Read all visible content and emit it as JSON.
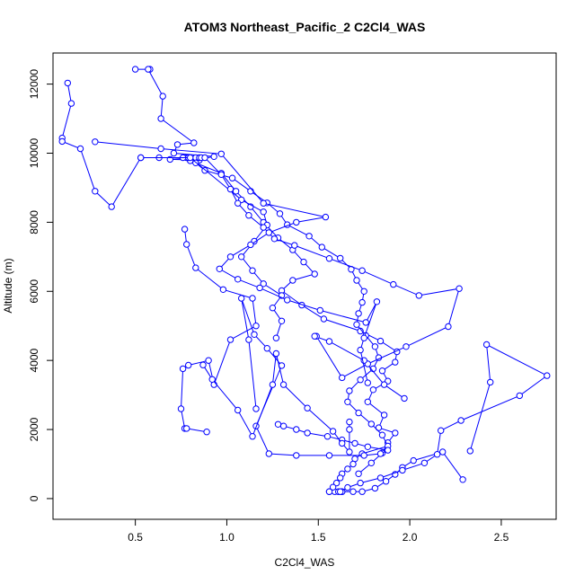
{
  "chart_data": {
    "type": "line",
    "title": "ATOM3 Northeast_Pacific_2 C2Cl4_WAS",
    "xlabel": "C2Cl4_WAS",
    "ylabel": "Altitude (m)",
    "xlim": [
      0.05,
      2.8
    ],
    "ylim": [
      -600,
      12900
    ],
    "x_ticks": [
      "0.5",
      "1.0",
      "1.5",
      "2.0",
      "2.5"
    ],
    "y_ticks": [
      "0",
      "2000",
      "4000",
      "6000",
      "8000",
      "10000",
      "12000"
    ],
    "grid": false,
    "legend": "none",
    "marker": "open-circle",
    "color": "#0000ff",
    "series": [
      {
        "x": [
          0.5,
          0.58,
          0.57,
          0.65,
          0.64,
          0.82,
          0.73,
          0.71,
          0.93,
          0.8,
          0.97,
          1.05,
          1.13,
          1.2,
          1.28,
          1.36,
          1.42,
          1.48,
          1.36,
          1.3,
          1.41,
          1.53,
          1.73,
          1.84,
          1.93,
          1.92,
          1.85,
          1.88,
          1.8,
          1.77,
          1.86,
          1.83,
          1.92,
          1.88,
          1.85,
          1.79,
          1.72
        ],
        "y": [
          12430,
          12430,
          12430,
          11650,
          11000,
          10300,
          10250,
          10000,
          9900,
          9780,
          9420,
          8900,
          8450,
          8000,
          7550,
          7200,
          6850,
          6500,
          6320,
          6020,
          5600,
          5200,
          4850,
          4560,
          4250,
          3950,
          3700,
          3400,
          3150,
          2800,
          2420,
          2050,
          1900,
          1620,
          1320,
          1030,
          720
        ]
      },
      {
        "x": [
          1.63,
          1.56,
          1.59,
          1.61,
          1.63,
          1.69,
          1.74,
          1.81,
          1.87,
          1.92,
          1.96,
          2.02,
          2.18,
          2.29
        ],
        "y": [
          200,
          200,
          200,
          200,
          200,
          200,
          200,
          300,
          500,
          700,
          900,
          1100,
          1350,
          550
        ]
      },
      {
        "x": [
          0.63,
          0.53,
          0.78,
          0.79,
          0.76,
          0.83,
          0.69,
          0.85,
          0.83,
          0.88,
          1.03,
          1.13,
          1.22,
          1.29,
          1.33,
          1.45,
          1.52,
          1.62,
          1.68,
          1.71,
          1.75,
          1.74,
          1.72,
          1.71,
          1.76,
          1.81,
          1.83,
          1.8,
          1.73,
          1.67,
          1.66,
          1.72,
          1.79,
          1.85,
          1.88,
          1.74,
          1.7,
          1.69,
          1.66,
          1.63,
          1.62,
          1.6,
          1.58,
          1.56
        ],
        "y": [
          9870,
          9870,
          9870,
          9870,
          9870,
          9870,
          9820,
          9800,
          9720,
          9500,
          9280,
          8900,
          8560,
          8250,
          7930,
          7600,
          7280,
          6960,
          6640,
          6320,
          6000,
          5680,
          5360,
          5040,
          4720,
          4400,
          4080,
          3760,
          3440,
          3120,
          2800,
          2480,
          2160,
          1840,
          1520,
          1300,
          1150,
          1000,
          860,
          720,
          600,
          450,
          330,
          200
        ]
      },
      {
        "x": [
          0.13,
          0.15,
          0.1,
          0.1,
          0.2,
          0.28,
          0.37,
          0.53,
          0.8,
          1.08,
          1.2,
          1.22,
          1.15,
          1.08,
          1.14,
          1.2,
          1.3,
          1.25,
          1.3,
          1.27
        ],
        "y": [
          12030,
          11440,
          10440,
          10340,
          10130,
          8900,
          8450,
          9870,
          9870,
          8650,
          8300,
          7920,
          7450,
          7000,
          6600,
          6220,
          5880,
          5520,
          5140,
          4650
        ]
      },
      {
        "x": [
          0.85,
          0.86,
          0.88,
          0.97,
          1.02,
          1.06,
          1.12,
          1.2,
          1.26,
          1.37,
          1.56,
          1.74,
          1.91,
          2.05,
          2.27,
          2.21,
          1.98,
          1.77,
          1.63,
          1.49,
          1.48,
          1.56,
          1.75,
          1.86,
          1.97
        ],
        "y": [
          9870,
          9870,
          9870,
          9380,
          8960,
          8550,
          8200,
          7850,
          7520,
          7330,
          6950,
          6600,
          6200,
          5880,
          6080,
          4980,
          4400,
          3900,
          3500,
          4700,
          4700,
          4550,
          4000,
          3300,
          2900
        ]
      },
      {
        "x": [
          2.33,
          2.44,
          2.42,
          2.75,
          2.6,
          2.28,
          2.17,
          2.15,
          2.08,
          1.96,
          1.84,
          1.73,
          1.66,
          1.62
        ],
        "y": [
          1380,
          3370,
          4460,
          3560,
          2980,
          2260,
          1970,
          1280,
          1030,
          820,
          600,
          450,
          320,
          200
        ]
      },
      {
        "x": [
          0.28,
          0.64,
          0.97,
          1.2,
          1.54,
          1.38,
          1.23,
          1.13,
          1.02,
          0.96,
          1.06,
          1.18,
          1.33,
          1.51,
          1.76,
          1.82,
          1.75,
          1.73,
          1.77
        ],
        "y": [
          10330,
          10130,
          9980,
          8550,
          8150,
          8000,
          7700,
          7350,
          7000,
          6650,
          6350,
          6100,
          5750,
          5450,
          5100,
          5700,
          4650,
          4300,
          3350
        ]
      },
      {
        "x": [
          0.77,
          0.78,
          0.83,
          0.98,
          1.14,
          1.16,
          1.02,
          0.93,
          0.9,
          0.79,
          0.76,
          0.75,
          0.77,
          0.78,
          0.89
        ],
        "y": [
          7800,
          7360,
          6680,
          6050,
          5800,
          5000,
          4600,
          3300,
          4000,
          3860,
          3760,
          2600,
          2030,
          2030,
          1930
        ]
      },
      {
        "x": [
          1.16,
          1.12,
          1.08,
          1.15,
          1.22,
          1.3,
          1.16,
          1.23,
          1.38,
          1.56,
          1.75,
          1.84,
          1.88,
          1.77,
          1.7,
          1.63,
          1.55,
          1.44,
          1.38,
          1.31,
          1.28
        ],
        "y": [
          2600,
          4600,
          5800,
          4750,
          4350,
          3850,
          2100,
          1300,
          1250,
          1250,
          1250,
          1300,
          1400,
          1500,
          1600,
          1700,
          1800,
          1900,
          2000,
          2100,
          2150
        ]
      },
      {
        "x": [
          0.87,
          0.92,
          1.06,
          1.14,
          1.25,
          1.27,
          1.31,
          1.44,
          1.58,
          1.63,
          1.67,
          1.67,
          1.67
        ],
        "y": [
          3870,
          3450,
          2560,
          1800,
          3300,
          4200,
          3300,
          2620,
          1950,
          1600,
          1350,
          2000,
          2220
        ]
      }
    ]
  }
}
